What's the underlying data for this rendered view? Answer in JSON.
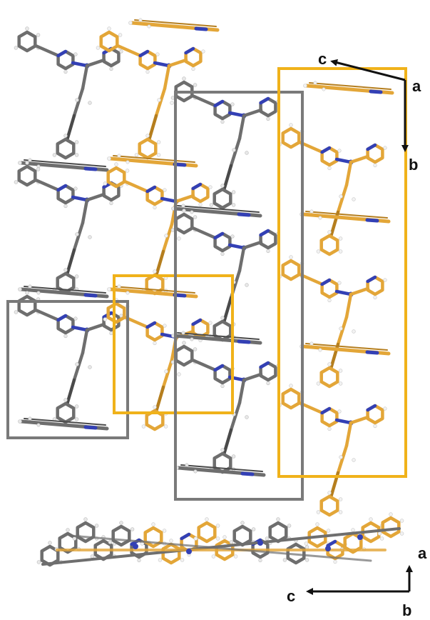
{
  "colors": {
    "grey_molecule": "#6e6e6e",
    "grey_molecule_dark": "#4a4a4a",
    "orange_molecule": "#e3a638",
    "orange_molecule_dark": "#b57e1e",
    "nitrogen": "#3340b5",
    "hydrogen": "#e8e8e8",
    "grey_box": "#7a7a7a",
    "orange_box": "#f0b21a",
    "axis_arrow": "#111111"
  },
  "top_view": {
    "axes": {
      "c_label": "c",
      "a_label": "a",
      "b_label": "b"
    }
  },
  "side_view": {
    "axes": {
      "a_label": "a",
      "c_label": "c",
      "b_label": "b"
    }
  }
}
